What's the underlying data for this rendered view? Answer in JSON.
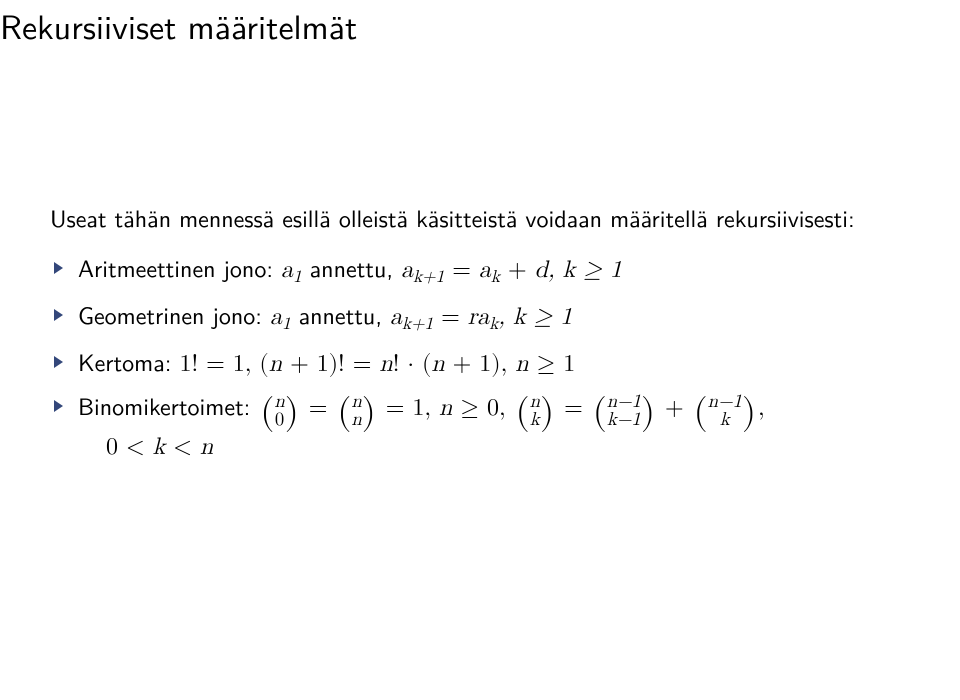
{
  "title": "Rekursiiviset määritelmät",
  "intro": "Useat tähän mennessä esillä olleistä käsitteistä voidaan määritellä rekursiivisesti:",
  "bullets": {
    "b1_label": "Aritmeettinen jono: ",
    "b2_label": "Geometrinen jono: ",
    "b3_label": "Kertoma: ",
    "b4_label": "Binomikertoimet: "
  },
  "math": {
    "arith_a1": "a",
    "arith_text1": " annettu, ",
    "arith_rel": "a",
    "arith_eq": " = ",
    "arith_rhs_a": "a",
    "arith_plus": " + ",
    "arith_d": "d",
    "arith_cond": ", k ≥ 1",
    "geom_text1": " annettu, ",
    "geom_rhs": "ra",
    "geom_cond": ", k ≥ 1",
    "fact_1": "1! = 1, (n + 1)! = n! · (n + 1), n ≥ 1",
    "binom_eq": " = ",
    "binom_one": " = 1, ",
    "binom_ncond": "n ≥ 0, ",
    "binom_plus": " + ",
    "binom_comma": ",",
    "binom_tail": "0 < k < n",
    "sub_1": "1",
    "sub_k": "k",
    "sub_kp1": "k+1",
    "n": "n",
    "k": "k",
    "zero": "0",
    "nm1": "n−1",
    "km1": "k−1"
  },
  "style": {
    "bg": "#ffffff",
    "text": "#000000",
    "bullet_color": "#33477a",
    "title_fontsize": 34,
    "body_fontsize": 24
  }
}
